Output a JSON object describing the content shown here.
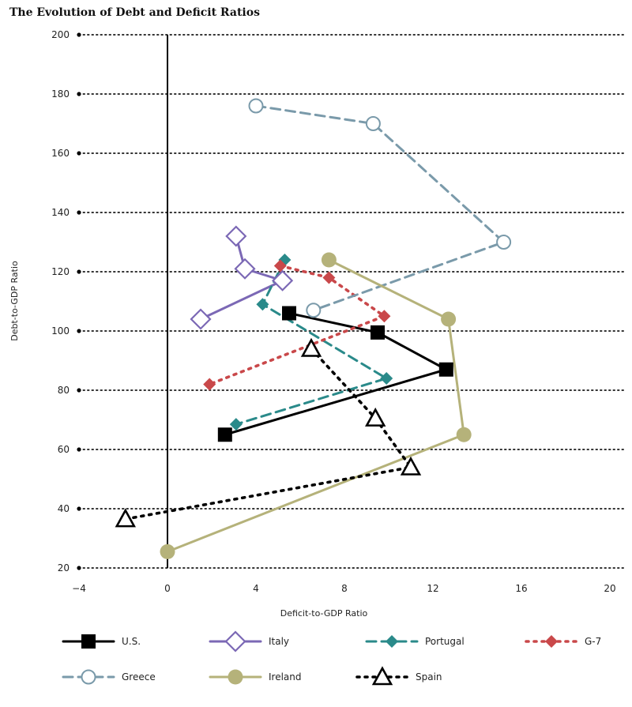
{
  "chart_data": {
    "type": "line",
    "title": "The Evolution of Debt and Deficit Ratios",
    "xlabel": "Deficit-to-GDP Ratio",
    "ylabel": "Debt-to-GDP Ratio",
    "xlim": [
      -4,
      20
    ],
    "ylim": [
      20,
      200
    ],
    "xticks": [
      -4,
      0,
      4,
      8,
      12,
      16,
      20
    ],
    "yticks": [
      20,
      40,
      60,
      80,
      100,
      120,
      140,
      160,
      180,
      200
    ],
    "grid": "horizontal-dotted",
    "legend": "bottom",
    "series": [
      {
        "name": "U.S.",
        "color": "#000000",
        "dash": "solid",
        "marker": "square",
        "points": [
          [
            5.5,
            106
          ],
          [
            9.5,
            99.5
          ],
          [
            12.6,
            87
          ],
          [
            2.6,
            65
          ]
        ]
      },
      {
        "name": "Italy",
        "color": "#7b68b5",
        "dash": "solid",
        "marker": "diamond-open",
        "points": [
          [
            3.1,
            132
          ],
          [
            3.5,
            121
          ],
          [
            5.2,
            117
          ],
          [
            1.5,
            104
          ]
        ]
      },
      {
        "name": "Portugal",
        "color": "#2a8a8a",
        "dash": "dash",
        "marker": "diamond",
        "points": [
          [
            5.3,
            124
          ],
          [
            4.3,
            109
          ],
          [
            9.9,
            84
          ],
          [
            3.1,
            68.5
          ]
        ]
      },
      {
        "name": "G-7",
        "color": "#c9484a",
        "dash": "dot",
        "marker": "diamond",
        "points": [
          [
            5.1,
            122
          ],
          [
            7.3,
            118
          ],
          [
            9.8,
            105
          ],
          [
            1.9,
            82
          ]
        ]
      },
      {
        "name": "Greece",
        "color": "#7a9aaa",
        "dash": "dash",
        "marker": "circle-open",
        "points": [
          [
            4.0,
            176
          ],
          [
            9.3,
            170
          ],
          [
            15.2,
            130
          ],
          [
            6.6,
            107
          ]
        ]
      },
      {
        "name": "Ireland",
        "color": "#b5b27a",
        "dash": "solid",
        "marker": "circle",
        "points": [
          [
            7.3,
            124
          ],
          [
            12.7,
            104
          ],
          [
            13.4,
            65
          ],
          [
            0,
            25.5
          ]
        ]
      },
      {
        "name": "Spain",
        "color": "#000000",
        "dash": "dot",
        "marker": "triangle-open",
        "points": [
          [
            6.5,
            94
          ],
          [
            9.4,
            70.5
          ],
          [
            11.0,
            54
          ],
          [
            -1.9,
            36.5
          ]
        ]
      }
    ]
  }
}
